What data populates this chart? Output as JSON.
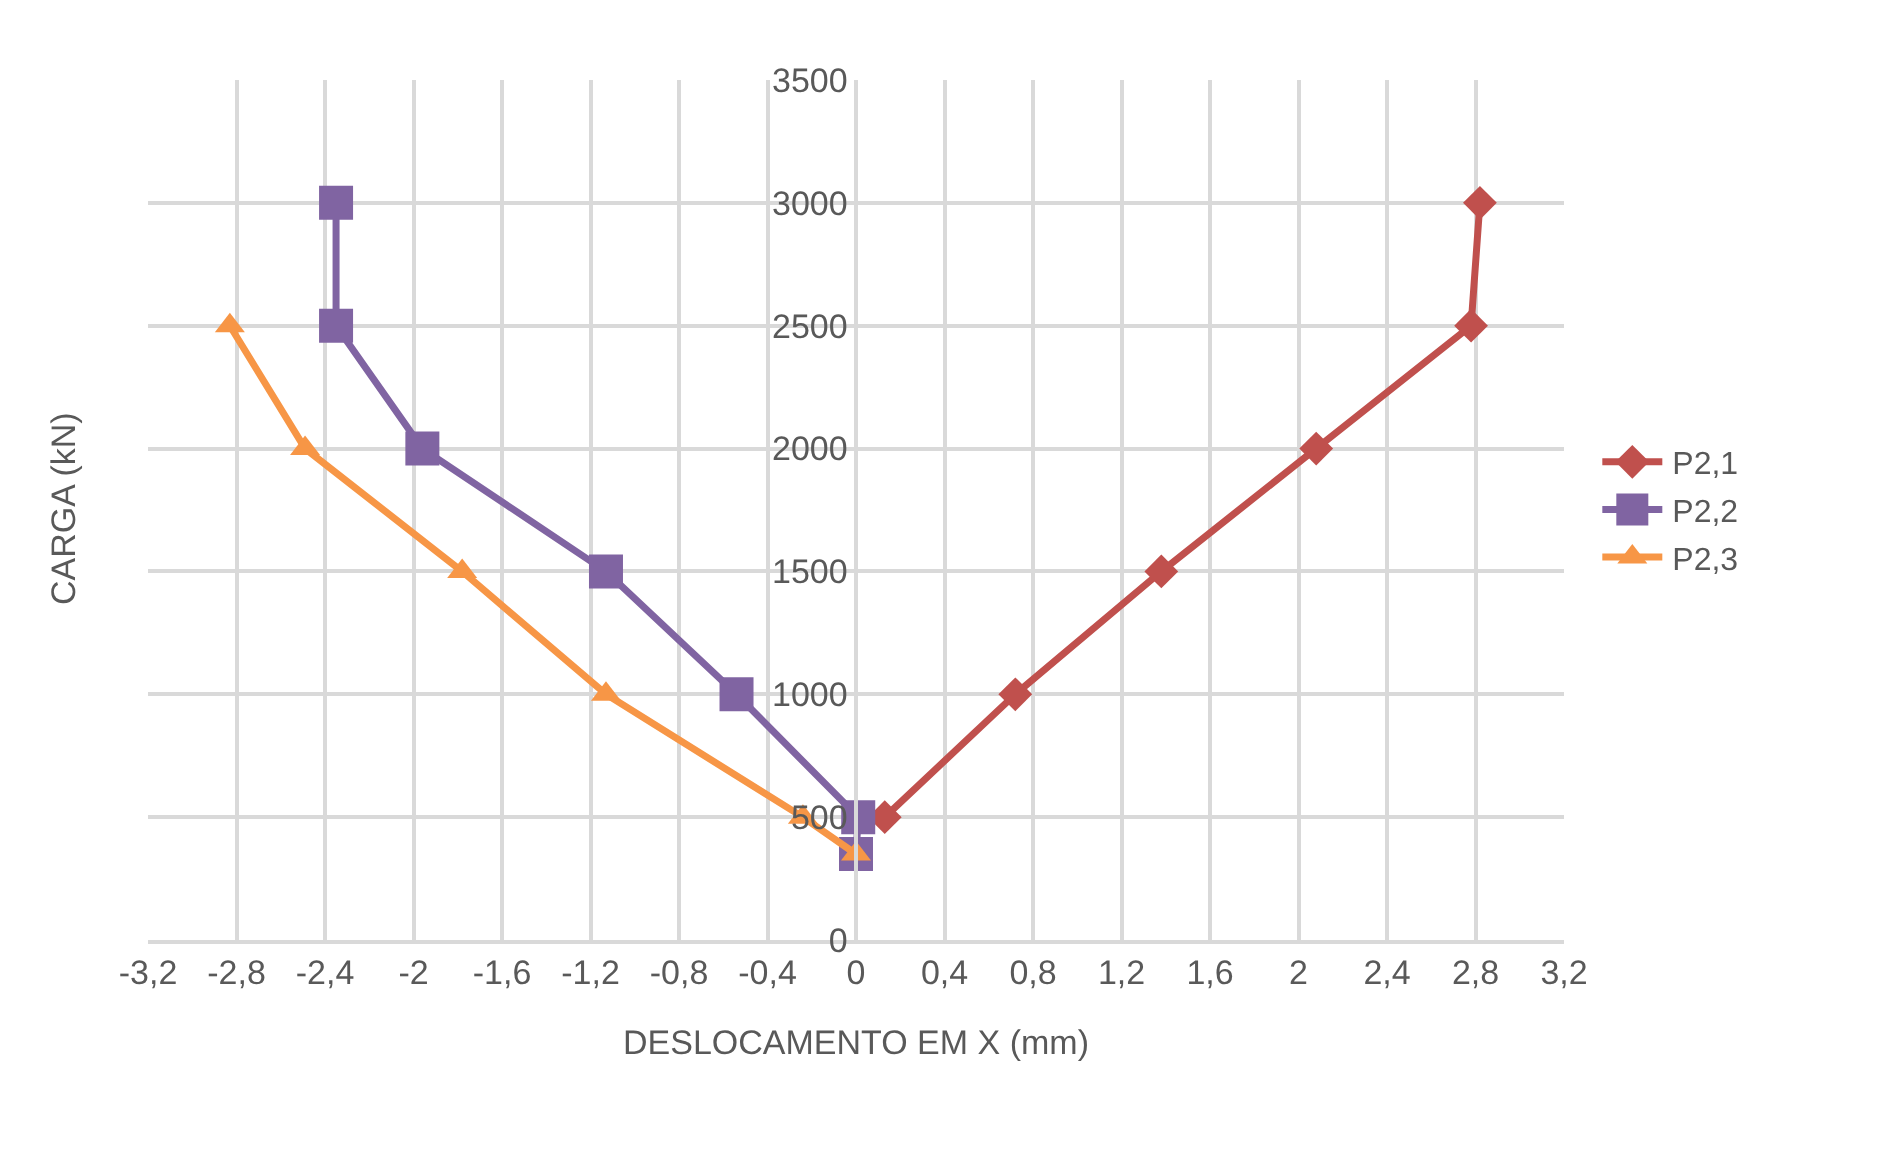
{
  "chart_data": {
    "type": "line",
    "xlabel": "DESLOCAMENTO EM X (mm)",
    "ylabel": "CARGA (kN)",
    "xlim": [
      -3.2,
      3.2
    ],
    "xticks": [
      {
        "value": -3.2,
        "label": "-3,2"
      },
      {
        "value": -2.8,
        "label": "-2,8"
      },
      {
        "value": -2.4,
        "label": "-2,4"
      },
      -2,
      {
        "value": -1.6,
        "label": "-1,6"
      },
      {
        "value": -1.2,
        "label": "-1,2"
      },
      {
        "value": -0.8,
        "label": "-0,8"
      },
      {
        "value": -0.4,
        "label": "-0,4"
      },
      0,
      {
        "value": 0.4,
        "label": "0,4"
      },
      {
        "value": 0.8,
        "label": "0,8"
      },
      {
        "value": 1.2,
        "label": "1,2"
      },
      {
        "value": 1.6,
        "label": "1,6"
      },
      2,
      {
        "value": 2.4,
        "label": "2,4"
      },
      {
        "value": 2.8,
        "label": "2,8"
      },
      {
        "value": 3.2,
        "label": "3,2"
      }
    ],
    "ylim": [
      0,
      3500
    ],
    "yticks": [
      0,
      500,
      1000,
      1500,
      2000,
      2500,
      3000,
      3500
    ],
    "grid": true,
    "legend": "right",
    "series": [
      {
        "name": "P2,1",
        "color": "#c0504d",
        "marker": "diamond",
        "x": [
          0.13,
          0.72,
          1.38,
          2.08,
          2.78,
          2.82
        ],
        "values": [
          500,
          1000,
          1500,
          2000,
          2500,
          3000
        ]
      },
      {
        "name": "P2,2",
        "color": "#8064a2",
        "marker": "square",
        "x": [
          0.0,
          0.01,
          -0.54,
          -1.13,
          -1.96,
          -2.35,
          -2.35
        ],
        "values": [
          350,
          500,
          1000,
          1500,
          2000,
          2500,
          3000
        ]
      },
      {
        "name": "P2,3",
        "color": "#f79646",
        "marker": "triangle",
        "x": [
          0.0,
          -0.24,
          -1.13,
          -1.78,
          -2.49,
          -2.83
        ],
        "values": [
          350,
          500,
          1000,
          1500,
          2000,
          2500
        ]
      }
    ]
  }
}
